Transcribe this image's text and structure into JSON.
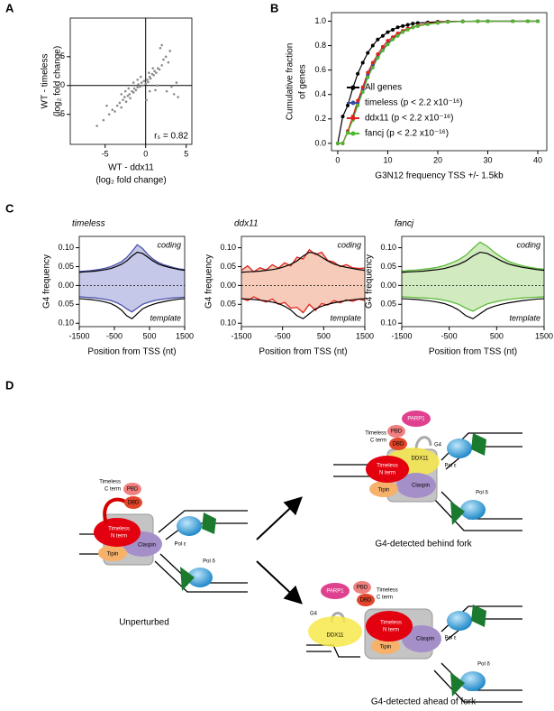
{
  "panel_labels": [
    "A",
    "B",
    "C",
    "D"
  ],
  "chart_data": [
    {
      "type": "scatter",
      "x_label": [
        "WT - ddx11",
        "(log₂ fold change)"
      ],
      "y_label": [
        "WT - timeless",
        "(log₂ fold change)"
      ],
      "annotation": "rₛ = 0.82",
      "color": "#8c8c8c",
      "xlim": [
        -9.3,
        5.7
      ],
      "ylim": [
        -10.2,
        11.7
      ],
      "xticks": [
        -5,
        0,
        5
      ],
      "yticks": [
        -5,
        0,
        5
      ],
      "x": [
        -5.2,
        -4.5,
        -4.1,
        -3.8,
        -3.5,
        -3.2,
        -3.0,
        -2.8,
        -2.6,
        -2.4,
        -2.2,
        -2.0,
        -1.9,
        -1.7,
        -1.5,
        -1.4,
        -1.2,
        -1.0,
        -0.9,
        -0.7,
        -0.5,
        -0.4,
        -0.2,
        0.0,
        0.2,
        0.3,
        0.5,
        0.6,
        0.8,
        1.0,
        1.1,
        1.3,
        1.5,
        1.7,
        2.0,
        2.2,
        2.5,
        2.8,
        3.0,
        3.5,
        4.0,
        -6.0,
        -2.5,
        -1.0,
        0.5,
        1.2,
        2.0,
        3.2,
        -3.0,
        -1.5,
        0.9,
        1.8,
        2.6,
        -0.6,
        0.4,
        1.4,
        -2.1,
        3.8,
        0.1,
        -4.8
      ],
      "values": [
        -6.0,
        -5.0,
        -4.2,
        -4.5,
        -3.5,
        -3.0,
        -3.8,
        -2.5,
        -2.0,
        -2.8,
        -1.8,
        -1.5,
        -2.2,
        -1.0,
        -1.2,
        -0.5,
        -0.8,
        -0.3,
        0.2,
        -0.2,
        0.5,
        0.0,
        0.8,
        0.3,
        1.0,
        0.6,
        1.5,
        1.2,
        2.0,
        1.8,
        2.5,
        2.2,
        3.0,
        2.8,
        3.5,
        4.5,
        5.0,
        4.0,
        6.0,
        -1.5,
        -2.0,
        -7.0,
        -1.0,
        1.0,
        -1.0,
        -0.8,
        7.0,
        -0.2,
        -1.5,
        0.5,
        3.0,
        6.5,
        -1.0,
        1.5,
        2.2,
        0.0,
        -0.5,
        0.5,
        -2.5,
        -3.5
      ]
    },
    {
      "type": "line",
      "x_label": [
        "G3N12 frequency TSS +/- 1.5kb"
      ],
      "y_label": [
        "Cumulative fraction",
        "of genes"
      ],
      "legend": "lower right",
      "xlim": [
        -1.25,
        41.8
      ],
      "ylim": [
        -0.06,
        1.07
      ],
      "xticks": [
        0,
        10,
        20,
        30,
        40
      ],
      "yticks": [
        {
          "value": 0,
          "label": "0.0"
        },
        0.2,
        0.4,
        0.6,
        0.8,
        {
          "value": 1,
          "label": "1.0"
        }
      ],
      "x": [
        0,
        1,
        2,
        3,
        4,
        5,
        6,
        7,
        8,
        9,
        10,
        11,
        12,
        13,
        14,
        15,
        16,
        18,
        20,
        22,
        25,
        28,
        30,
        35,
        38,
        40
      ],
      "series": [
        {
          "name": "All genes",
          "color": "#000000",
          "values": [
            0.0,
            0.22,
            0.31,
            0.45,
            0.57,
            0.66,
            0.74,
            0.8,
            0.85,
            0.88,
            0.91,
            0.93,
            0.95,
            0.96,
            0.97,
            0.98,
            0.985,
            0.99,
            0.995,
            0.997,
            0.999,
            1,
            1,
            1,
            1,
            1
          ]
        },
        {
          "name": "timeless (p < 2.2 x10⁻¹⁶)",
          "color": "#3b4ba0",
          "values": [
            0.0,
            0.0,
            0.1,
            0.2,
            0.33,
            0.44,
            0.56,
            0.64,
            0.71,
            0.77,
            0.82,
            0.86,
            0.89,
            0.92,
            0.94,
            0.95,
            0.96,
            0.98,
            0.99,
            0.995,
            0.998,
            1,
            1,
            1,
            1,
            1
          ]
        },
        {
          "name": "ddx11 (p < 2.2 x10⁻¹⁶)",
          "color": "#e0211b",
          "values": [
            0.0,
            0.0,
            0.1,
            0.22,
            0.35,
            0.46,
            0.58,
            0.66,
            0.73,
            0.79,
            0.84,
            0.87,
            0.9,
            0.92,
            0.94,
            0.95,
            0.965,
            0.98,
            0.99,
            0.995,
            0.998,
            1,
            1,
            1,
            1,
            1
          ]
        },
        {
          "name": "fancj (p < 2.2 x10⁻¹⁶)",
          "color": "#4cb82f",
          "values": [
            0.0,
            0.0,
            0.09,
            0.19,
            0.31,
            0.42,
            0.54,
            0.62,
            0.7,
            0.76,
            0.81,
            0.85,
            0.88,
            0.91,
            0.93,
            0.95,
            0.96,
            0.975,
            0.985,
            0.993,
            0.998,
            1,
            1,
            1,
            1,
            1
          ]
        }
      ]
    },
    {
      "type": "area",
      "title": "timeless",
      "annotations": [
        "coding",
        "template"
      ],
      "x_label": [
        "Position from TSS (nt)"
      ],
      "y_label": [
        "G4 frequency"
      ],
      "xlim": [
        -1500,
        1500
      ],
      "ylim": [
        -0.109,
        0.13
      ],
      "xticks": [
        -1500,
        -500,
        500,
        1500
      ],
      "yticks": [
        {
          "value": 0.1,
          "label": "0.10"
        },
        {
          "value": 0.05,
          "label": "0.05"
        },
        {
          "value": 0,
          "label": "0.00"
        },
        {
          "value": -0.05,
          "label": "0.05"
        },
        {
          "value": -0.1,
          "label": "0.10"
        }
      ],
      "x": [
        -1500,
        -1350,
        -1200,
        -1050,
        -900,
        -750,
        -600,
        -450,
        -300,
        -150,
        0,
        150,
        300,
        450,
        600,
        750,
        900,
        1050,
        1200,
        1350,
        1500
      ],
      "series": [
        {
          "color": "#4a50a8",
          "fill": "#c5c8e8",
          "values": [
            0.037,
            0.038,
            0.039,
            0.041,
            0.043,
            0.046,
            0.05,
            0.056,
            0.063,
            0.074,
            0.09,
            0.108,
            0.098,
            0.082,
            0.07,
            0.061,
            0.055,
            0.051,
            0.047,
            0.044,
            0.042
          ]
        },
        {
          "color": "#4a50a8",
          "fill": "#c5c8e8",
          "values": [
            -0.03,
            -0.031,
            -0.032,
            -0.033,
            -0.035,
            -0.037,
            -0.04,
            -0.045,
            -0.052,
            -0.062,
            -0.07,
            -0.06,
            -0.05,
            -0.045,
            -0.041,
            -0.038,
            -0.036,
            -0.034,
            -0.033,
            -0.032,
            -0.031
          ]
        },
        {
          "color": "#000000",
          "values": [
            0.035,
            0.036,
            0.037,
            0.038,
            0.04,
            0.042,
            0.045,
            0.05,
            0.056,
            0.065,
            0.078,
            0.088,
            0.085,
            0.075,
            0.065,
            0.057,
            0.052,
            0.048,
            0.045,
            0.042,
            0.04
          ]
        },
        {
          "color": "#000000",
          "values": [
            -0.035,
            -0.036,
            -0.037,
            -0.039,
            -0.041,
            -0.044,
            -0.048,
            -0.055,
            -0.065,
            -0.08,
            -0.088,
            -0.075,
            -0.062,
            -0.055,
            -0.05,
            -0.046,
            -0.043,
            -0.04,
            -0.038,
            -0.036,
            -0.035
          ]
        }
      ]
    },
    {
      "type": "area",
      "title": "ddx11",
      "annotations": [
        "coding",
        "template"
      ],
      "x_label": [
        "Position from TSS (nt)"
      ],
      "y_label": [
        "G4 frequency"
      ],
      "xlim": [
        -1500,
        1500
      ],
      "ylim": [
        -0.109,
        0.13
      ],
      "xticks": [
        -1500,
        -500,
        500,
        1500
      ],
      "yticks": [
        {
          "value": 0.1,
          "label": "0.10"
        },
        {
          "value": 0.05,
          "label": "0.05"
        },
        {
          "value": 0,
          "label": "0.00"
        },
        {
          "value": -0.05,
          "label": "0.05"
        },
        {
          "value": -0.1,
          "label": "0.10"
        }
      ],
      "x": [
        -1500,
        -1350,
        -1200,
        -1050,
        -900,
        -750,
        -600,
        -450,
        -300,
        -150,
        0,
        150,
        300,
        450,
        600,
        750,
        900,
        1050,
        1200,
        1350,
        1500
      ],
      "series": [
        {
          "color": "#e0211b",
          "fill": "#f6cbb9",
          "values": [
            0.04,
            0.052,
            0.036,
            0.047,
            0.041,
            0.055,
            0.046,
            0.06,
            0.052,
            0.075,
            0.07,
            0.095,
            0.082,
            0.088,
            0.066,
            0.062,
            0.05,
            0.055,
            0.047,
            0.045,
            0.046
          ]
        },
        {
          "color": "#e0211b",
          "fill": "#f6cbb9",
          "values": [
            -0.034,
            -0.04,
            -0.03,
            -0.038,
            -0.044,
            -0.036,
            -0.05,
            -0.045,
            -0.06,
            -0.058,
            -0.072,
            -0.05,
            -0.066,
            -0.048,
            -0.052,
            -0.04,
            -0.046,
            -0.038,
            -0.042,
            -0.036,
            -0.04
          ]
        },
        {
          "color": "#000000",
          "values": [
            0.035,
            0.036,
            0.037,
            0.038,
            0.04,
            0.042,
            0.045,
            0.05,
            0.056,
            0.065,
            0.078,
            0.088,
            0.085,
            0.075,
            0.065,
            0.057,
            0.052,
            0.048,
            0.045,
            0.042,
            0.04
          ]
        },
        {
          "color": "#000000",
          "values": [
            -0.035,
            -0.036,
            -0.037,
            -0.039,
            -0.041,
            -0.044,
            -0.048,
            -0.055,
            -0.065,
            -0.08,
            -0.088,
            -0.075,
            -0.062,
            -0.055,
            -0.05,
            -0.046,
            -0.043,
            -0.04,
            -0.038,
            -0.036,
            -0.035
          ]
        }
      ]
    },
    {
      "type": "area",
      "title": "fancj",
      "annotations": [
        "coding",
        "template"
      ],
      "x_label": [
        "Position from TSS (nt)"
      ],
      "y_label": [
        "G4 frequency"
      ],
      "xlim": [
        -1500,
        1500
      ],
      "ylim": [
        -0.109,
        0.13
      ],
      "xticks": [
        -1500,
        -500,
        500,
        1500
      ],
      "yticks": [
        {
          "value": 0.1,
          "label": "0.10"
        },
        {
          "value": 0.05,
          "label": "0.05"
        },
        {
          "value": 0,
          "label": "0.00"
        },
        {
          "value": -0.05,
          "label": "0.05"
        },
        {
          "value": -0.1,
          "label": "0.10"
        }
      ],
      "x": [
        -1500,
        -1350,
        -1200,
        -1050,
        -900,
        -750,
        -600,
        -450,
        -300,
        -150,
        0,
        150,
        300,
        450,
        600,
        750,
        900,
        1050,
        1200,
        1350,
        1500
      ],
      "series": [
        {
          "color": "#5dbb3a",
          "fill": "#d2eabf",
          "values": [
            0.038,
            0.04,
            0.041,
            0.043,
            0.045,
            0.048,
            0.053,
            0.06,
            0.068,
            0.08,
            0.098,
            0.115,
            0.104,
            0.088,
            0.075,
            0.064,
            0.057,
            0.052,
            0.048,
            0.045,
            0.043
          ]
        },
        {
          "color": "#5dbb3a",
          "fill": "#d2eabf",
          "values": [
            -0.03,
            -0.031,
            -0.032,
            -0.033,
            -0.034,
            -0.036,
            -0.039,
            -0.044,
            -0.05,
            -0.06,
            -0.068,
            -0.058,
            -0.049,
            -0.044,
            -0.04,
            -0.037,
            -0.035,
            -0.033,
            -0.032,
            -0.031,
            -0.03
          ]
        },
        {
          "color": "#000000",
          "values": [
            0.035,
            0.036,
            0.037,
            0.038,
            0.04,
            0.042,
            0.045,
            0.05,
            0.056,
            0.065,
            0.078,
            0.088,
            0.085,
            0.075,
            0.065,
            0.057,
            0.052,
            0.048,
            0.045,
            0.042,
            0.04
          ]
        },
        {
          "color": "#000000",
          "values": [
            -0.035,
            -0.036,
            -0.037,
            -0.039,
            -0.041,
            -0.044,
            -0.048,
            -0.055,
            -0.065,
            -0.08,
            -0.088,
            -0.075,
            -0.062,
            -0.055,
            -0.05,
            -0.046,
            -0.043,
            -0.04,
            -0.038,
            -0.036,
            -0.035
          ]
        }
      ]
    }
  ],
  "diagram": {
    "unperturbed": {
      "caption": "Unperturbed",
      "timeless_c": [
        "Timeless",
        "C term"
      ],
      "pbd": "PBD",
      "dbd": "DBD",
      "timeless_n": [
        "Timeless",
        "N term"
      ],
      "tipin": "Tipin",
      "claspin": "Claspin",
      "pol_e": "Pol ε",
      "pol_d": "Pol δ"
    },
    "behind": {
      "caption": "G4-detected behind fork",
      "parp1": "PARP1",
      "timeless_c": [
        "Timeless",
        "C term"
      ],
      "pbd": "PBD",
      "dbd": "DBD",
      "g4": "G4",
      "ddx11": "DDX11",
      "timeless_n": [
        "Timeless",
        "N term"
      ],
      "tipin": "Tipin",
      "claspin": "Claspin",
      "pol_e": "Pol ε",
      "pol_d": "Pol δ"
    },
    "ahead": {
      "caption": "G4-detected ahead of fork",
      "parp1": "PARP1",
      "timeless_c": [
        "Timeless",
        "C term"
      ],
      "pbd": "PBD",
      "dbd": "DBD",
      "g4": "G4",
      "ddx11": "DDX11",
      "timeless_n": [
        "Timeless",
        "N term"
      ],
      "tipin": "Tipin",
      "claspin": "Claspin",
      "pol_e": "Pol ε",
      "pol_d": "Pol δ"
    }
  }
}
